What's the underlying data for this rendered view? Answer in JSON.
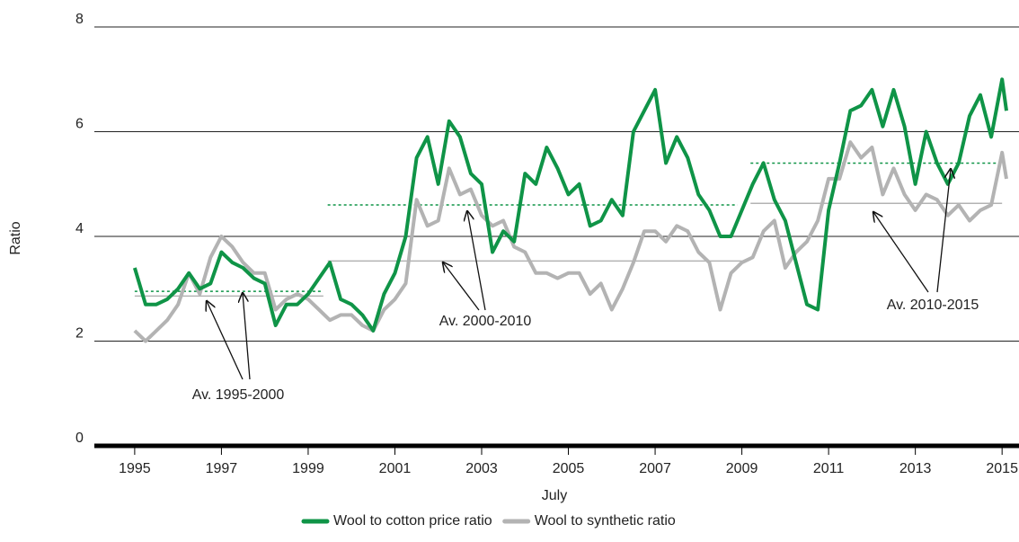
{
  "chart_data": {
    "type": "line",
    "x_label": "July",
    "y_label": "Ratio",
    "x": [
      1995,
      1995.25,
      1995.5,
      1995.75,
      1996,
      1996.25,
      1996.5,
      1996.75,
      1997,
      1997.25,
      1997.5,
      1997.75,
      1998,
      1998.25,
      1998.5,
      1998.75,
      1999,
      1999.25,
      1999.5,
      1999.75,
      2000,
      2000.25,
      2000.5,
      2000.75,
      2001,
      2001.25,
      2001.5,
      2001.75,
      2002,
      2002.25,
      2002.5,
      2002.75,
      2003,
      2003.25,
      2003.5,
      2003.75,
      2004,
      2004.25,
      2004.5,
      2004.75,
      2005,
      2005.25,
      2005.5,
      2005.75,
      2006,
      2006.25,
      2006.5,
      2006.75,
      2007,
      2007.25,
      2007.5,
      2007.75,
      2008,
      2008.25,
      2008.5,
      2008.75,
      2009,
      2009.25,
      2009.5,
      2009.75,
      2010,
      2010.25,
      2010.5,
      2010.75,
      2011,
      2011.25,
      2011.5,
      2011.75,
      2012,
      2012.25,
      2012.5,
      2012.75,
      2013,
      2013.25,
      2013.5,
      2013.75,
      2014,
      2014.25,
      2014.5,
      2014.75,
      2015,
      2015.1
    ],
    "series": [
      {
        "name": "Wool to cotton price ratio",
        "color": "#0f9447",
        "values": [
          3.4,
          2.7,
          2.7,
          2.8,
          3.0,
          3.3,
          3.0,
          3.1,
          3.7,
          3.5,
          3.4,
          3.2,
          3.1,
          2.3,
          2.7,
          2.7,
          2.9,
          3.2,
          3.5,
          2.8,
          2.7,
          2.5,
          2.2,
          2.9,
          3.3,
          4.0,
          5.5,
          5.9,
          5.0,
          6.2,
          5.9,
          5.2,
          5.0,
          3.7,
          4.1,
          3.9,
          5.2,
          5.0,
          5.7,
          5.3,
          4.8,
          5.0,
          4.2,
          4.3,
          4.7,
          4.4,
          6.0,
          6.4,
          6.8,
          5.4,
          5.9,
          5.5,
          4.8,
          4.5,
          4.0,
          4.0,
          4.5,
          5.0,
          5.4,
          4.7,
          4.3,
          3.5,
          2.7,
          2.6,
          4.5,
          5.4,
          6.4,
          6.5,
          6.8,
          6.1,
          6.8,
          6.1,
          5.0,
          6.0,
          5.4,
          5.0,
          5.4,
          6.3,
          6.7,
          5.9,
          7.0,
          6.4
        ]
      },
      {
        "name": "Wool to synthetic ratio",
        "color": "#b3b3b3",
        "values": [
          2.2,
          2.0,
          2.2,
          2.4,
          2.7,
          3.3,
          2.9,
          3.6,
          4.0,
          3.8,
          3.5,
          3.3,
          3.3,
          2.6,
          2.8,
          2.9,
          2.8,
          2.6,
          2.4,
          2.5,
          2.5,
          2.3,
          2.2,
          2.6,
          2.8,
          3.1,
          4.7,
          4.2,
          4.3,
          5.3,
          4.8,
          4.9,
          4.4,
          4.2,
          4.3,
          3.8,
          3.7,
          3.3,
          3.3,
          3.2,
          3.3,
          3.3,
          2.9,
          3.1,
          2.6,
          3.0,
          3.5,
          4.1,
          4.1,
          3.9,
          4.2,
          4.1,
          3.7,
          3.5,
          2.6,
          3.3,
          3.5,
          3.6,
          4.1,
          4.3,
          3.4,
          3.7,
          3.9,
          4.3,
          5.1,
          5.1,
          5.8,
          5.5,
          5.7,
          4.8,
          5.3,
          4.8,
          4.5,
          4.8,
          4.7,
          4.4,
          4.6,
          4.3,
          4.5,
          4.6,
          5.6,
          5.1
        ]
      }
    ],
    "reference_lines": [
      {
        "series": 0,
        "x": [
          1995,
          1999.35
        ],
        "value": 2.95
      },
      {
        "series": 1,
        "x": [
          1995,
          1999.35
        ],
        "value": 2.86
      },
      {
        "series": 0,
        "x": [
          1999.45,
          2008.9
        ],
        "value": 4.6
      },
      {
        "series": 1,
        "x": [
          1999.45,
          2009.0
        ],
        "value": 3.53
      },
      {
        "series": 0,
        "x": [
          2009.2,
          2015
        ],
        "value": 5.4
      },
      {
        "series": 1,
        "x": [
          2009.2,
          2015
        ],
        "value": 4.63
      }
    ],
    "annotations": [
      "Av. 1995-2000",
      "Av. 2000-2010",
      "Av. 2010-2015"
    ],
    "xlim": [
      1994.07,
      2015.39
    ],
    "xticks": [
      1995,
      1997,
      1999,
      2001,
      2003,
      2005,
      2007,
      2009,
      2011,
      2013,
      2015
    ],
    "ylim": [
      0,
      8
    ],
    "yticks": [
      0,
      2,
      4,
      6,
      8
    ],
    "grid": true
  }
}
